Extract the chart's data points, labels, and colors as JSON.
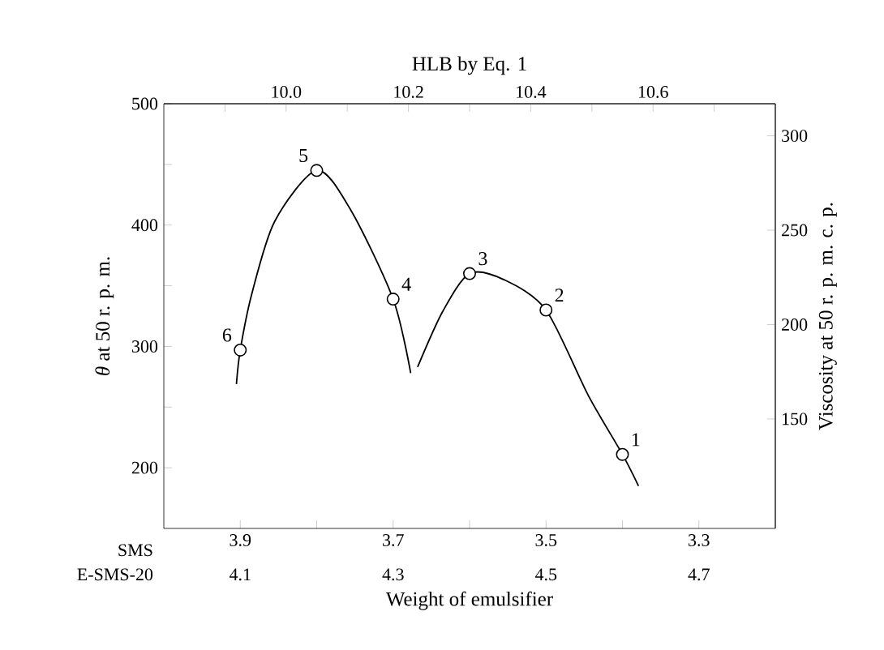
{
  "chart_data": {
    "type": "line",
    "xlabel": "Weight of emulsifier",
    "ylabel": "*θ* at 50 r. p. m.",
    "x2label": "HLB by Eq. 1",
    "y2label": "Viscosity at 50 r. p. m. c. p.",
    "xlim": [
      4.0,
      3.2
    ],
    "xticks": [
      {
        "value": 3.9,
        "label": "3.9"
      },
      {
        "value": 3.8,
        "label": null
      },
      {
        "value": 3.7,
        "label": "3.7"
      },
      {
        "value": 3.6,
        "label": null
      },
      {
        "value": 3.5,
        "label": "3.5"
      },
      {
        "value": 3.4,
        "label": null
      },
      {
        "value": 3.3,
        "label": "3.3"
      }
    ],
    "x2lim": [
      9.8,
      10.8
    ],
    "x2ticks": [
      {
        "value": 9.9,
        "label": null
      },
      {
        "value": 10.0,
        "label": "10.0"
      },
      {
        "value": 10.1,
        "label": null
      },
      {
        "value": 10.2,
        "label": "10.2"
      },
      {
        "value": 10.3,
        "label": null
      },
      {
        "value": 10.4,
        "label": "10.4"
      },
      {
        "value": 10.5,
        "label": null
      },
      {
        "value": 10.6,
        "label": "10.6"
      },
      {
        "value": 10.7,
        "label": null
      }
    ],
    "ylim": [
      150,
      500
    ],
    "yticks": [
      {
        "value": 200,
        "label": "200"
      },
      {
        "value": 250,
        "label": null
      },
      {
        "value": 300,
        "label": "300"
      },
      {
        "value": 350,
        "label": null
      },
      {
        "value": 400,
        "label": "400"
      },
      {
        "value": 450,
        "label": null
      },
      {
        "value": 500,
        "label": "500"
      }
    ],
    "y2lim": [
      92,
      317
    ],
    "y2ticks": [
      150,
      200,
      250,
      300
    ],
    "grid": false,
    "series": [
      {
        "color": "#000000",
        "line_style": "solid",
        "x": [
          3.905,
          3.9,
          3.885,
          3.855,
          3.8,
          3.756,
          3.7,
          3.677,
          3.672,
          3.668,
          3.635,
          3.6,
          3.555,
          3.5,
          3.445,
          3.4,
          3.379
        ],
        "values": [
          269,
          297,
          343,
          403,
          445,
          413,
          339,
          278,
          null,
          283,
          329,
          360,
          355,
          330,
          260,
          211,
          185
        ]
      },
      {
        "type": "scatter",
        "color": "#000000",
        "marker": "circle",
        "x": [
          3.9,
          3.8,
          3.7,
          3.6,
          3.5,
          3.4
        ],
        "values": [
          297,
          445,
          339,
          360,
          330,
          211
        ]
      }
    ],
    "annotations": [
      "SMS",
      "E-SMS-20",
      "4.1",
      "4.3",
      "4.5",
      "4.7",
      {
        "text": "1",
        "x": 3.4,
        "y": 211
      },
      {
        "text": "2",
        "x": 3.5,
        "y": 330
      },
      {
        "text": "3",
        "x": 3.6,
        "y": 360
      },
      {
        "text": "4",
        "x": 3.7,
        "y": 339
      },
      {
        "text": "5",
        "x": 3.8,
        "y": 445
      },
      {
        "text": "6",
        "x": 3.9,
        "y": 297
      }
    ]
  }
}
